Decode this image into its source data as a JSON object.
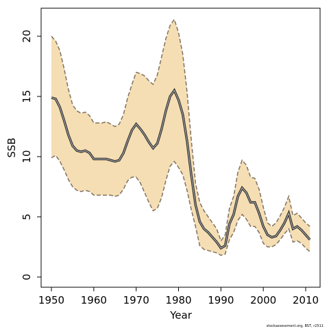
{
  "chart_data": {
    "type": "line",
    "xlabel": "Year",
    "ylabel": "SSB",
    "footnote": "stockassessment.org, BST, r2511",
    "x": [
      1950,
      1951,
      1952,
      1953,
      1954,
      1955,
      1956,
      1957,
      1958,
      1959,
      1960,
      1961,
      1962,
      1963,
      1964,
      1965,
      1966,
      1967,
      1968,
      1969,
      1970,
      1971,
      1972,
      1973,
      1974,
      1975,
      1976,
      1977,
      1978,
      1979,
      1980,
      1981,
      1982,
      1983,
      1984,
      1985,
      1986,
      1987,
      1988,
      1989,
      1990,
      1991,
      1992,
      1993,
      1994,
      1995,
      1996,
      1997,
      1998,
      1999,
      2000,
      2001,
      2002,
      2003,
      2004,
      2005,
      2006,
      2007,
      2008,
      2009,
      2010,
      2011
    ],
    "values": [
      14.9,
      14.8,
      14.1,
      13.0,
      11.8,
      10.9,
      10.5,
      10.4,
      10.5,
      10.3,
      9.8,
      9.8,
      9.8,
      9.8,
      9.7,
      9.6,
      9.7,
      10.3,
      11.3,
      12.2,
      12.7,
      12.3,
      11.8,
      11.2,
      10.7,
      11.1,
      12.3,
      13.8,
      15.0,
      15.5,
      14.7,
      13.5,
      11.3,
      8.5,
      6.0,
      4.6,
      4.0,
      3.7,
      3.3,
      2.9,
      2.4,
      2.6,
      4.4,
      5.2,
      6.7,
      7.4,
      7.0,
      6.2,
      6.2,
      5.3,
      4.2,
      3.5,
      3.3,
      3.4,
      3.9,
      4.5,
      5.3,
      4.0,
      4.2,
      3.9,
      3.5,
      3.1
    ],
    "upper": [
      20.0,
      19.6,
      18.8,
      17.3,
      15.6,
      14.3,
      13.8,
      13.6,
      13.7,
      13.4,
      12.8,
      12.8,
      12.8,
      12.9,
      12.7,
      12.5,
      12.7,
      13.5,
      14.9,
      16.0,
      17.0,
      16.9,
      16.7,
      16.3,
      16.0,
      16.8,
      18.3,
      19.8,
      20.9,
      21.4,
      20.3,
      18.5,
      15.4,
      11.4,
      7.8,
      6.2,
      5.5,
      5.0,
      4.5,
      4.0,
      3.0,
      3.5,
      5.7,
      6.7,
      8.7,
      9.7,
      9.3,
      8.3,
      8.2,
      7.3,
      5.8,
      4.5,
      4.2,
      4.5,
      5.1,
      5.8,
      6.7,
      5.1,
      5.3,
      4.9,
      4.5,
      4.2
    ],
    "lower": [
      9.9,
      10.1,
      9.6,
      8.9,
      8.1,
      7.5,
      7.2,
      7.1,
      7.2,
      7.1,
      6.8,
      6.8,
      6.8,
      6.8,
      6.8,
      6.7,
      6.8,
      7.3,
      8.0,
      8.3,
      8.3,
      7.8,
      7.0,
      6.2,
      5.5,
      5.7,
      6.6,
      8.0,
      9.2,
      9.6,
      9.1,
      8.5,
      7.2,
      5.6,
      4.2,
      2.6,
      2.3,
      2.2,
      2.1,
      2.0,
      1.8,
      1.9,
      3.1,
      3.7,
      4.7,
      5.2,
      4.8,
      4.2,
      4.2,
      3.7,
      2.8,
      2.5,
      2.5,
      2.7,
      3.1,
      3.6,
      4.0,
      2.9,
      3.0,
      2.8,
      2.4,
      2.1
    ],
    "color": "#333333",
    "band_color": "#f5deb3",
    "band_edge_color": "#7f7160",
    "xlim": [
      1947.57,
      2013.4
    ],
    "ylim": [
      -0.85,
      22.33
    ],
    "xticks": [
      1950,
      1960,
      1970,
      1980,
      1990,
      2000,
      2010
    ],
    "yticks": [
      0,
      5,
      10,
      15,
      20
    ]
  }
}
